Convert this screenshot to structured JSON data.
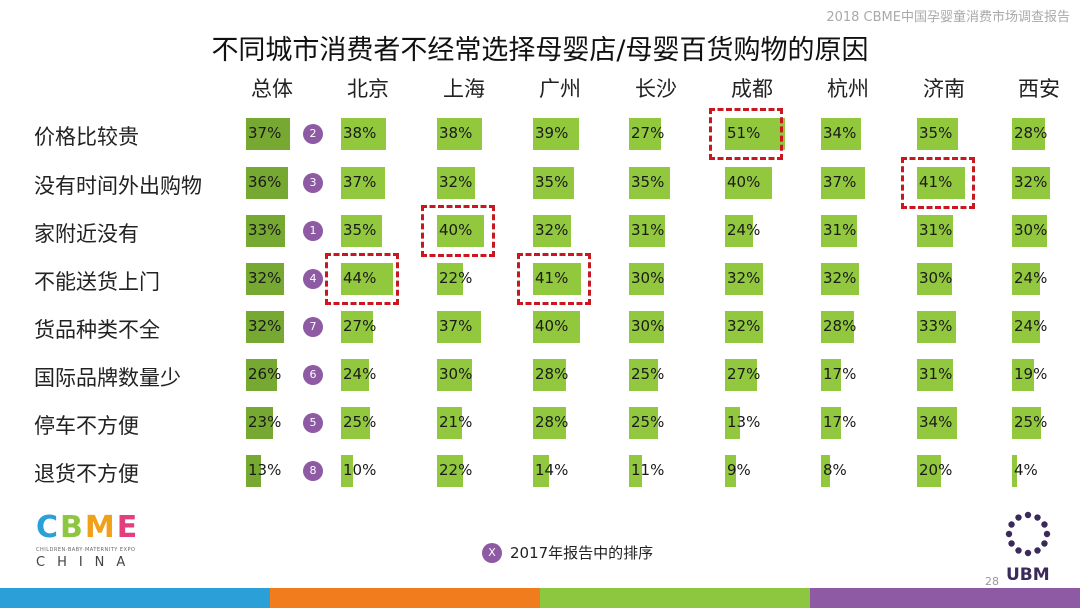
{
  "header_note": "2018 CBME中国孕婴童消费市场调查报告",
  "chart_data": {
    "type": "table",
    "title": "不同城市消费者不经常选择母婴店/母婴百货购物的原因",
    "columns": [
      "总体",
      "北京",
      "上海",
      "广州",
      "长沙",
      "成都",
      "杭州",
      "济南",
      "西安"
    ],
    "rows": [
      {
        "label": "价格比较贵",
        "rank_2017": "2",
        "values": [
          37,
          38,
          38,
          39,
          27,
          51,
          34,
          35,
          28
        ]
      },
      {
        "label": "没有时间外出购物",
        "rank_2017": "3",
        "values": [
          36,
          37,
          32,
          35,
          35,
          40,
          37,
          41,
          32
        ]
      },
      {
        "label": "家附近没有",
        "rank_2017": "1",
        "values": [
          33,
          35,
          40,
          32,
          31,
          24,
          31,
          31,
          30
        ]
      },
      {
        "label": "不能送货上门",
        "rank_2017": "4",
        "values": [
          32,
          44,
          22,
          41,
          30,
          32,
          32,
          30,
          24
        ]
      },
      {
        "label": "货品种类不全",
        "rank_2017": "7",
        "values": [
          32,
          27,
          37,
          40,
          30,
          32,
          28,
          33,
          24
        ]
      },
      {
        "label": "国际品牌数量少",
        "rank_2017": "6",
        "values": [
          26,
          24,
          30,
          28,
          25,
          27,
          17,
          31,
          19
        ]
      },
      {
        "label": "停车不方便",
        "rank_2017": "5",
        "values": [
          23,
          25,
          21,
          28,
          25,
          13,
          17,
          34,
          25
        ]
      },
      {
        "label": "退货不方便",
        "rank_2017": "8",
        "values": [
          13,
          10,
          22,
          14,
          11,
          9,
          8,
          20,
          4
        ]
      }
    ],
    "value_suffix": "%",
    "highlighted_cells": [
      [
        0,
        5
      ],
      [
        1,
        7
      ],
      [
        2,
        2
      ],
      [
        3,
        1
      ],
      [
        3,
        3
      ]
    ],
    "colors": {
      "total_bar": "#76a832",
      "city_bar": "#92c83e",
      "rank_badge": "#8e5aa4",
      "highlight": "#c8171e"
    }
  },
  "legend": {
    "badge": "X",
    "text": "2017年报告中的排序"
  },
  "logo": {
    "letters": [
      "C",
      "B",
      "M",
      "E"
    ],
    "letter_colors": [
      "#2aa0d8",
      "#8dc63f",
      "#f0a11c",
      "#e33f7f"
    ],
    "subtitle": "CHILDREN·BABY·MATERNITY EXPO",
    "country": "CHINA"
  },
  "ubm": {
    "text": "UBM",
    "color": "#3a2a5a"
  },
  "page_number": "28",
  "footer_colors": [
    "#2a9fd8",
    "#f07c1e",
    "#8dc63f",
    "#8e5aa4"
  ]
}
